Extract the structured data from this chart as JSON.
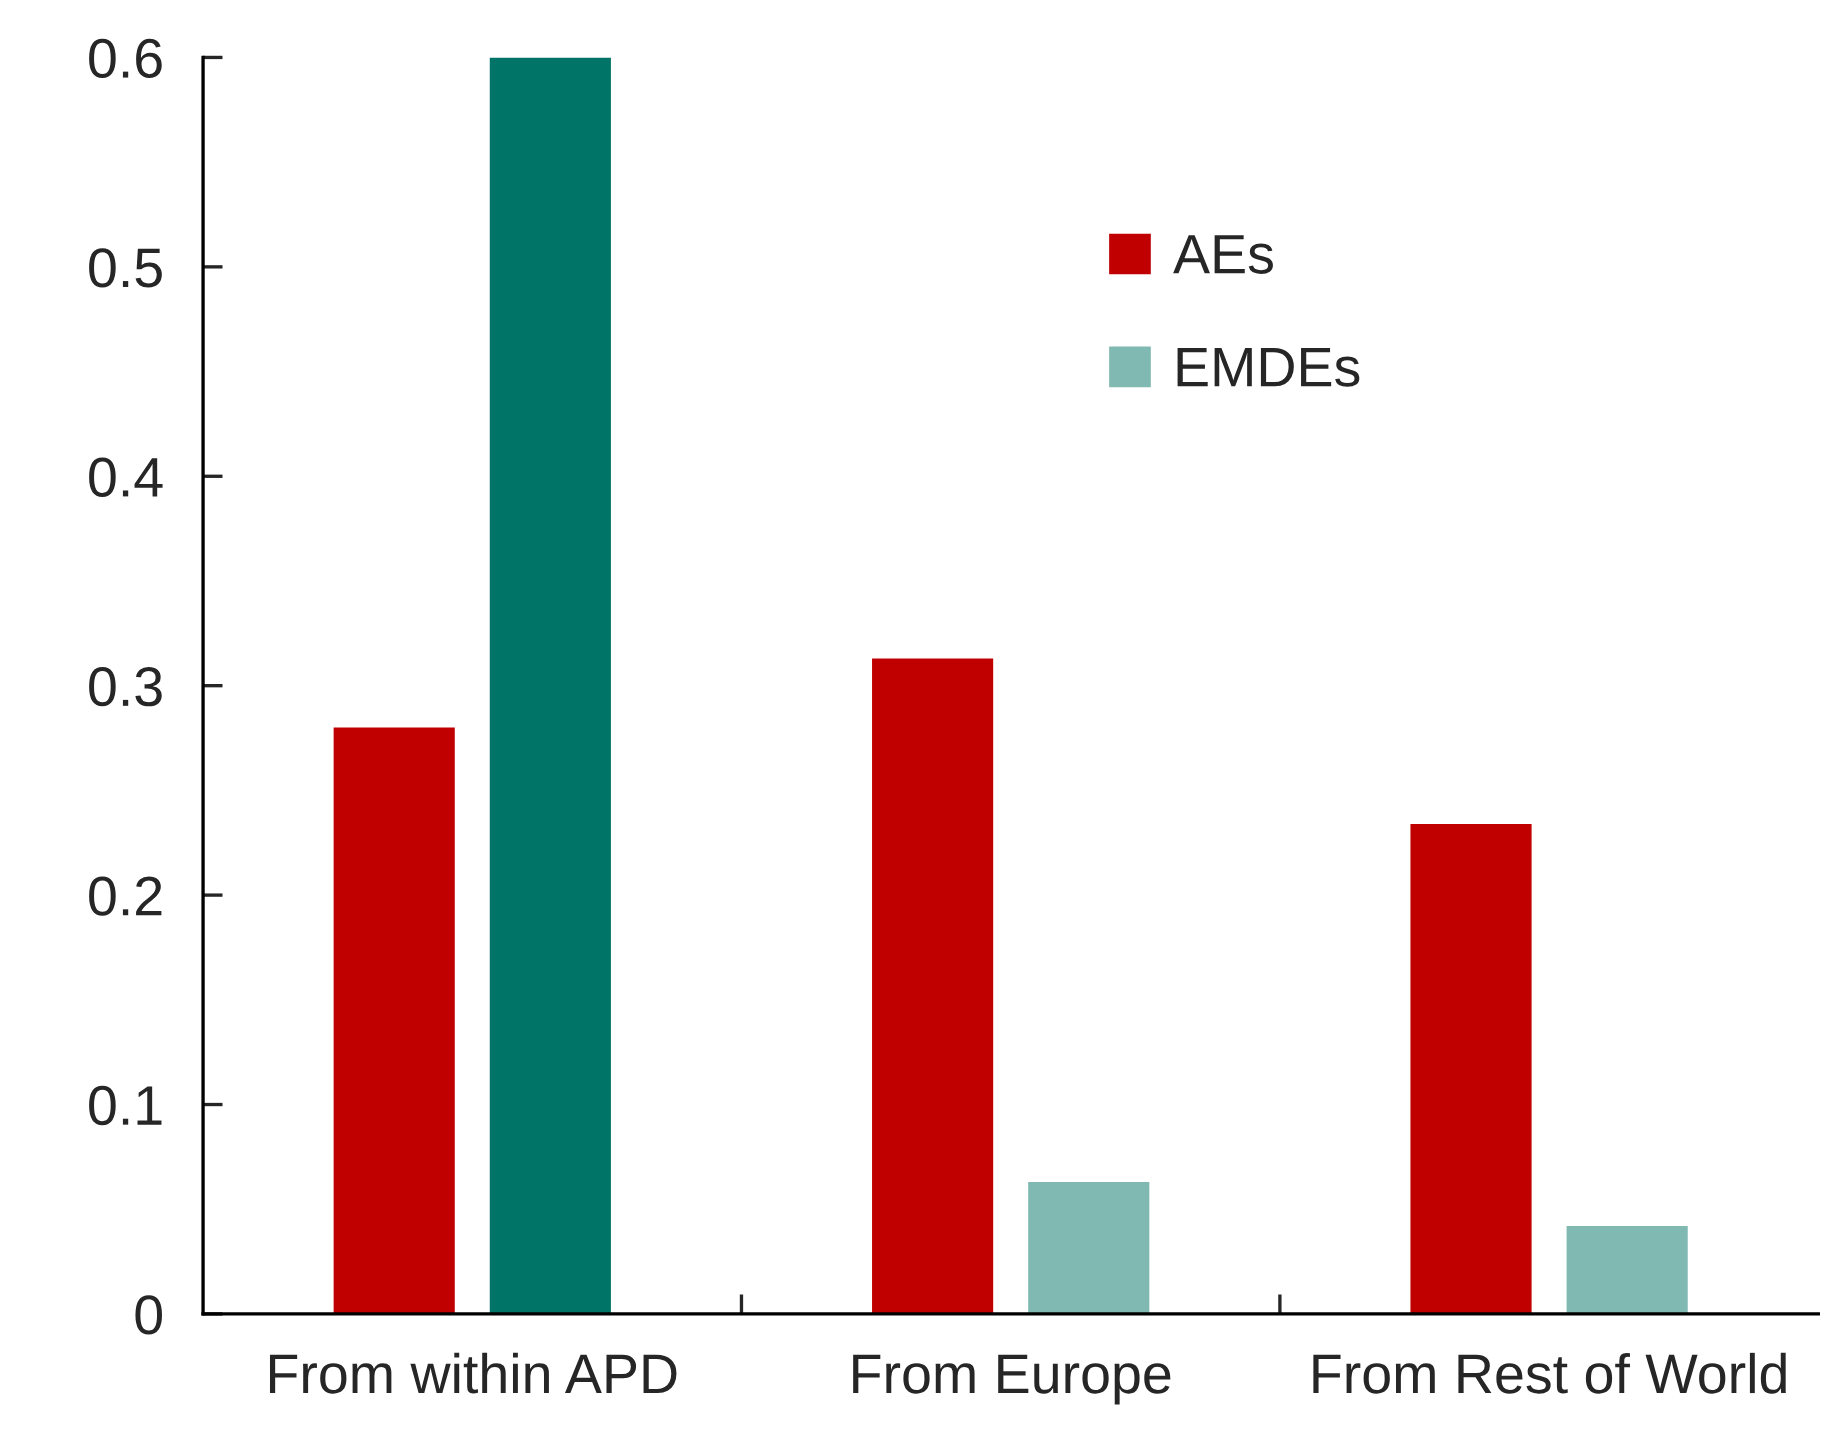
{
  "chart_data": {
    "type": "bar",
    "categories": [
      "From within APD",
      "From Europe",
      "From Rest of World"
    ],
    "series": [
      {
        "name": "AEs",
        "color": "#c00000",
        "values": [
          0.28,
          0.313,
          0.234
        ]
      },
      {
        "name": "EMDEs",
        "color": "#80b9b2",
        "colors": [
          "#007466",
          "#80b9b2",
          "#80b9b2"
        ],
        "values": [
          0.6,
          0.063,
          0.042
        ]
      }
    ],
    "ylim": [
      0,
      0.6
    ],
    "yticks": [
      0,
      0.1,
      0.2,
      0.3,
      0.4,
      0.5,
      0.6
    ],
    "legend": "top right"
  }
}
